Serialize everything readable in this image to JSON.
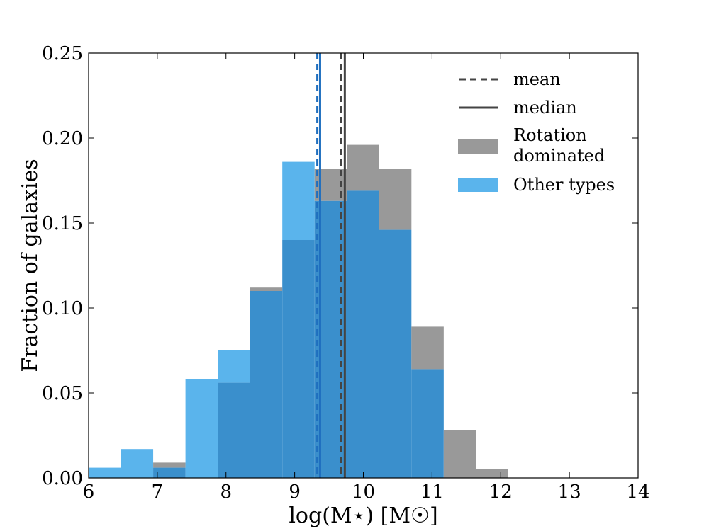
{
  "chart_data": {
    "type": "histogram",
    "xlabel": "log(M⋆) [M☉]",
    "ylabel": "Fraction of galaxies",
    "xlim": [
      6,
      14
    ],
    "ylim": [
      0,
      0.25
    ],
    "xticks": [
      "6",
      "7",
      "8",
      "9",
      "10",
      "11",
      "12",
      "13",
      "14"
    ],
    "yticks": [
      "0.00",
      "0.05",
      "0.10",
      "0.15",
      "0.20",
      "0.25"
    ],
    "bins": [
      6.0,
      6.47,
      6.94,
      7.41,
      7.88,
      8.35,
      8.82,
      9.29,
      9.76,
      10.23,
      10.7,
      11.17,
      11.64,
      12.11
    ],
    "series": [
      {
        "name": "Rotation dominated",
        "color": "#999999",
        "values": [
          0.0,
          0.0,
          0.009,
          0.0,
          0.056,
          0.112,
          0.14,
          0.182,
          0.196,
          0.182,
          0.089,
          0.028,
          0.005
        ],
        "mean": 9.68,
        "median": 9.73
      },
      {
        "name": "Other types",
        "color": "#5ab4ec",
        "values": [
          0.006,
          0.017,
          0.006,
          0.058,
          0.075,
          0.11,
          0.186,
          0.163,
          0.169,
          0.146,
          0.064,
          0.0,
          0.0
        ],
        "mean": 9.33,
        "median": 9.37
      }
    ],
    "overlap_color": "#3a8fcc",
    "mean_line_colors": {
      "rotation": "#444444",
      "other": "#1f6fbf"
    },
    "legend": {
      "position": "top-right",
      "entries": [
        "mean",
        "median",
        "Rotation\ndominated",
        "Other types"
      ]
    }
  }
}
